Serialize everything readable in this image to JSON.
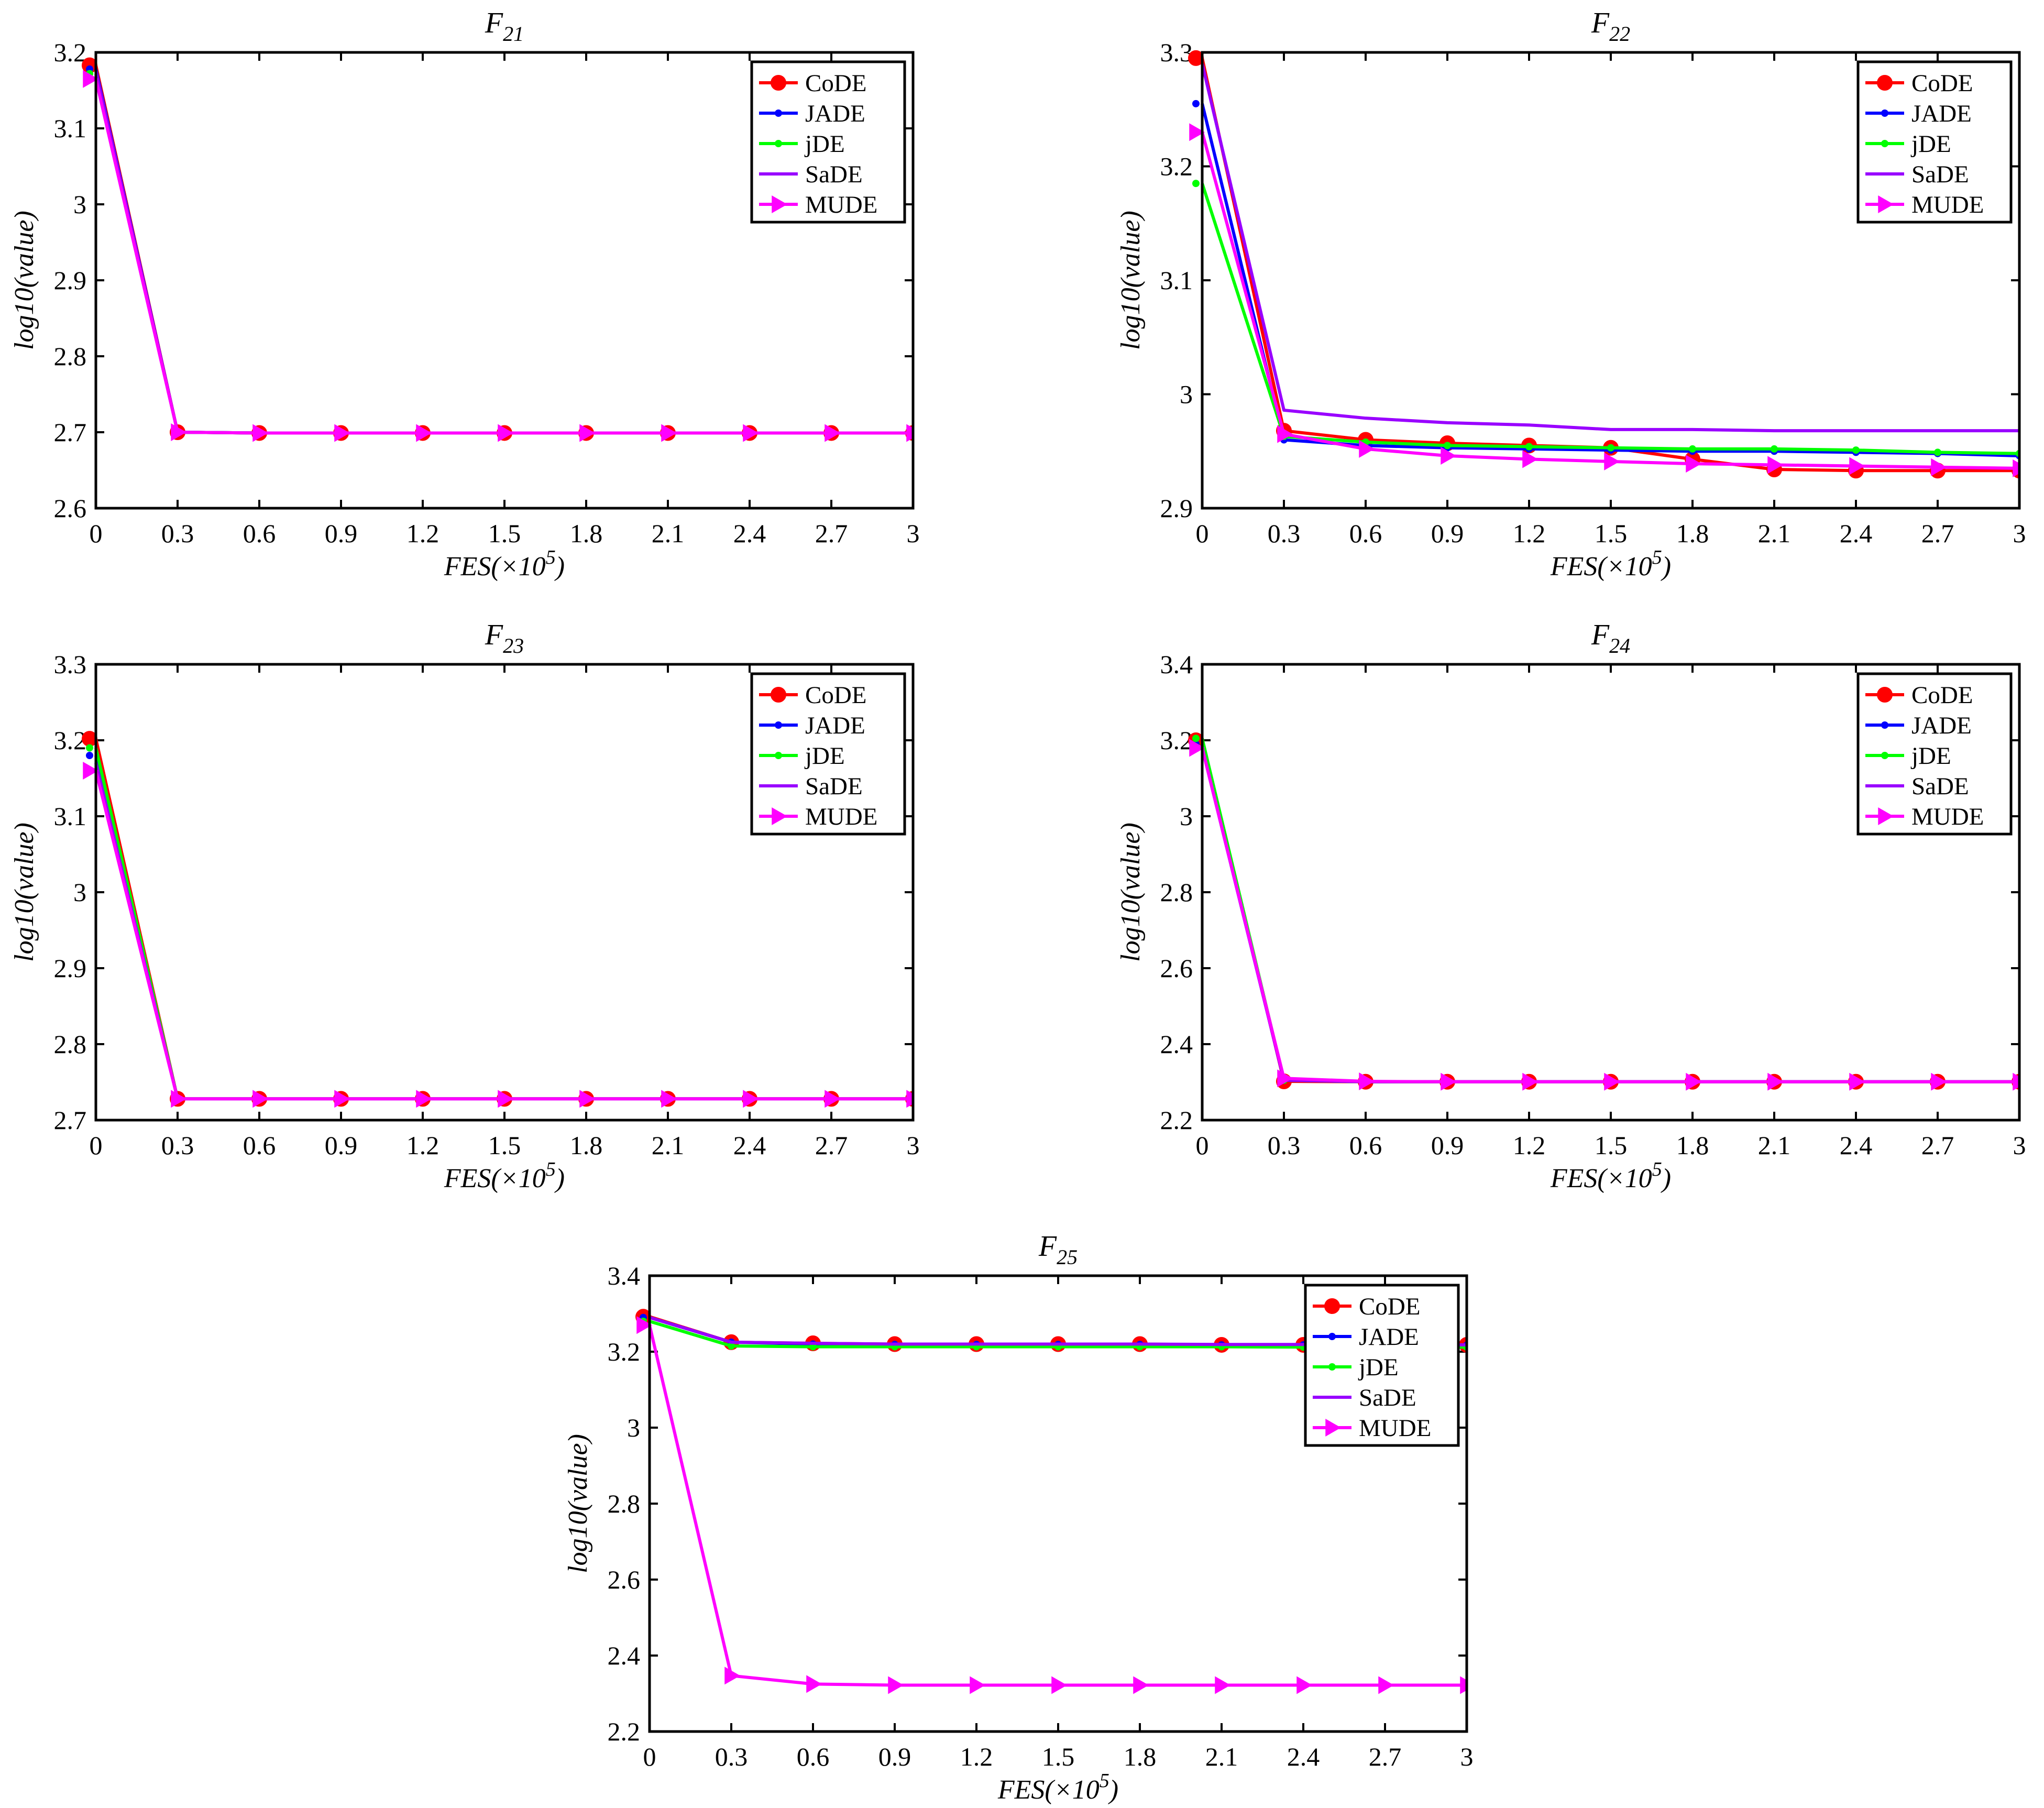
{
  "figure": {
    "x_label": "FES(×10",
    "x_label_exp": "5",
    "x_label_close": ")",
    "y_label": "log10(value)"
  },
  "legend": [
    {
      "name": "CoDE",
      "color": "#ff0000",
      "marker": "circle"
    },
    {
      "name": "JADE",
      "color": "#0000ff",
      "marker": "dot"
    },
    {
      "name": "jDE",
      "color": "#00ff00",
      "marker": "dot"
    },
    {
      "name": "SaDE",
      "color": "#9900ff",
      "marker": "none"
    },
    {
      "name": "MUDE",
      "color": "#ff00ff",
      "marker": "triangle"
    }
  ],
  "chart_data": [
    {
      "type": "line",
      "title": "F",
      "title_sub": "21",
      "xlabel": "FES(×10^5)",
      "ylabel": "log10(value)",
      "x": [
        0,
        0.3,
        0.6,
        0.9,
        1.2,
        1.5,
        1.8,
        2.1,
        2.4,
        2.7,
        3
      ],
      "x_ticks": [
        "0",
        "0.3",
        "0.6",
        "0.9",
        "1.2",
        "1.5",
        "1.8",
        "2.1",
        "2.4",
        "2.7",
        "3"
      ],
      "ylim": [
        2.6,
        3.2
      ],
      "y_ticks": [
        "2.6",
        "2.7",
        "2.8",
        "2.9",
        "3",
        "3.1",
        "3.2"
      ],
      "series": [
        {
          "name": "CoDE",
          "values": [
            3.183,
            2.7,
            2.699,
            2.699,
            2.699,
            2.699,
            2.699,
            2.699,
            2.699,
            2.699,
            2.699
          ]
        },
        {
          "name": "JADE",
          "values": [
            3.178,
            2.7,
            2.699,
            2.699,
            2.699,
            2.699,
            2.699,
            2.699,
            2.699,
            2.699,
            2.699
          ]
        },
        {
          "name": "jDE",
          "values": [
            3.172,
            2.7,
            2.699,
            2.699,
            2.699,
            2.699,
            2.699,
            2.699,
            2.699,
            2.699,
            2.699
          ]
        },
        {
          "name": "SaDE",
          "values": [
            3.175,
            2.7,
            2.699,
            2.699,
            2.699,
            2.699,
            2.699,
            2.699,
            2.699,
            2.699,
            2.699
          ]
        },
        {
          "name": "MUDE",
          "values": [
            3.165,
            2.7,
            2.699,
            2.699,
            2.699,
            2.699,
            2.699,
            2.699,
            2.699,
            2.699,
            2.699
          ]
        }
      ]
    },
    {
      "type": "line",
      "title": "F",
      "title_sub": "22",
      "xlabel": "FES(×10^5)",
      "ylabel": "log10(value)",
      "x": [
        0,
        0.3,
        0.6,
        0.9,
        1.2,
        1.5,
        1.8,
        2.1,
        2.4,
        2.7,
        3
      ],
      "x_ticks": [
        "0",
        "0.3",
        "0.6",
        "0.9",
        "1.2",
        "1.5",
        "1.8",
        "2.1",
        "2.4",
        "2.7",
        "3"
      ],
      "ylim": [
        2.9,
        3.3
      ],
      "y_ticks": [
        "2.9",
        "3",
        "3.1",
        "3.2",
        "3.3"
      ],
      "series": [
        {
          "name": "CoDE",
          "values": [
            3.295,
            2.968,
            2.96,
            2.957,
            2.955,
            2.953,
            2.943,
            2.934,
            2.933,
            2.933,
            2.933
          ]
        },
        {
          "name": "JADE",
          "values": [
            3.255,
            2.96,
            2.955,
            2.953,
            2.952,
            2.951,
            2.95,
            2.95,
            2.949,
            2.948,
            2.946
          ]
        },
        {
          "name": "jDE",
          "values": [
            3.185,
            2.963,
            2.958,
            2.955,
            2.954,
            2.953,
            2.952,
            2.952,
            2.951,
            2.949,
            2.948
          ]
        },
        {
          "name": "SaDE",
          "values": [
            3.29,
            2.986,
            2.979,
            2.975,
            2.973,
            2.969,
            2.969,
            2.968,
            2.968,
            2.968,
            2.968
          ]
        },
        {
          "name": "MUDE",
          "values": [
            3.23,
            2.965,
            2.952,
            2.946,
            2.943,
            2.941,
            2.939,
            2.938,
            2.937,
            2.936,
            2.935
          ]
        }
      ]
    },
    {
      "type": "line",
      "title": "F",
      "title_sub": "23",
      "xlabel": "FES(×10^5)",
      "ylabel": "log10(value)",
      "x": [
        0,
        0.3,
        0.6,
        0.9,
        1.2,
        1.5,
        1.8,
        2.1,
        2.4,
        2.7,
        3
      ],
      "x_ticks": [
        "0",
        "0.3",
        "0.6",
        "0.9",
        "1.2",
        "1.5",
        "1.8",
        "2.1",
        "2.4",
        "2.7",
        "3"
      ],
      "ylim": [
        2.7,
        3.3
      ],
      "y_ticks": [
        "2.7",
        "2.8",
        "2.9",
        "3",
        "3.1",
        "3.2",
        "3.3"
      ],
      "series": [
        {
          "name": "CoDE",
          "values": [
            3.202,
            2.728,
            2.728,
            2.728,
            2.728,
            2.728,
            2.728,
            2.728,
            2.728,
            2.728,
            2.728
          ]
        },
        {
          "name": "JADE",
          "values": [
            3.18,
            2.728,
            2.728,
            2.728,
            2.728,
            2.728,
            2.728,
            2.728,
            2.728,
            2.728,
            2.728
          ]
        },
        {
          "name": "jDE",
          "values": [
            3.19,
            2.728,
            2.728,
            2.728,
            2.728,
            2.728,
            2.728,
            2.728,
            2.728,
            2.728,
            2.728
          ]
        },
        {
          "name": "SaDE",
          "values": [
            3.17,
            2.728,
            2.728,
            2.728,
            2.728,
            2.728,
            2.728,
            2.728,
            2.728,
            2.728,
            2.728
          ]
        },
        {
          "name": "MUDE",
          "values": [
            3.16,
            2.728,
            2.728,
            2.728,
            2.728,
            2.728,
            2.728,
            2.728,
            2.728,
            2.728,
            2.728
          ]
        }
      ]
    },
    {
      "type": "line",
      "title": "F",
      "title_sub": "24",
      "xlabel": "FES(×10^5)",
      "ylabel": "log10(value)",
      "x": [
        0,
        0.3,
        0.6,
        0.9,
        1.2,
        1.5,
        1.8,
        2.1,
        2.4,
        2.7,
        3
      ],
      "x_ticks": [
        "0",
        "0.3",
        "0.6",
        "0.9",
        "1.2",
        "1.5",
        "1.8",
        "2.1",
        "2.4",
        "2.7",
        "3"
      ],
      "ylim": [
        2.2,
        3.4
      ],
      "y_ticks": [
        "2.2",
        "2.4",
        "2.6",
        "2.8",
        "3",
        "3.2",
        "3.4"
      ],
      "series": [
        {
          "name": "CoDE",
          "values": [
            3.2,
            2.302,
            2.301,
            2.301,
            2.301,
            2.301,
            2.301,
            2.301,
            2.301,
            2.301,
            2.301
          ]
        },
        {
          "name": "JADE",
          "values": [
            3.19,
            2.305,
            2.301,
            2.301,
            2.301,
            2.301,
            2.301,
            2.301,
            2.301,
            2.301,
            2.301
          ]
        },
        {
          "name": "jDE",
          "values": [
            3.205,
            2.305,
            2.301,
            2.301,
            2.301,
            2.301,
            2.301,
            2.301,
            2.301,
            2.301,
            2.301
          ]
        },
        {
          "name": "SaDE",
          "values": [
            3.18,
            2.305,
            2.301,
            2.301,
            2.301,
            2.301,
            2.301,
            2.301,
            2.301,
            2.301,
            2.301
          ]
        },
        {
          "name": "MUDE",
          "values": [
            3.18,
            2.31,
            2.302,
            2.301,
            2.301,
            2.301,
            2.301,
            2.301,
            2.301,
            2.301,
            2.301
          ]
        }
      ]
    },
    {
      "type": "line",
      "title": "F",
      "title_sub": "25",
      "xlabel": "FES(×10^5)",
      "ylabel": "log10(value)",
      "x": [
        0,
        0.3,
        0.6,
        0.9,
        1.2,
        1.5,
        1.8,
        2.1,
        2.4,
        2.7,
        3
      ],
      "x_ticks": [
        "0",
        "0.3",
        "0.6",
        "0.9",
        "1.2",
        "1.5",
        "1.8",
        "2.1",
        "2.4",
        "2.7",
        "3"
      ],
      "ylim": [
        2.2,
        3.4
      ],
      "y_ticks": [
        "2.2",
        "2.4",
        "2.6",
        "2.8",
        "3",
        "3.2",
        "3.4"
      ],
      "series": [
        {
          "name": "CoDE",
          "values": [
            3.292,
            3.225,
            3.222,
            3.22,
            3.22,
            3.22,
            3.22,
            3.218,
            3.218,
            3.218,
            3.218
          ]
        },
        {
          "name": "JADE",
          "values": [
            3.29,
            3.225,
            3.22,
            3.219,
            3.219,
            3.219,
            3.219,
            3.218,
            3.218,
            3.217,
            3.217
          ]
        },
        {
          "name": "jDE",
          "values": [
            3.28,
            3.215,
            3.213,
            3.213,
            3.213,
            3.213,
            3.213,
            3.213,
            3.212,
            3.212,
            3.212
          ]
        },
        {
          "name": "SaDE",
          "values": [
            3.29,
            3.225,
            3.222,
            3.22,
            3.22,
            3.22,
            3.22,
            3.219,
            3.219,
            3.218,
            3.218
          ]
        },
        {
          "name": "MUDE",
          "values": [
            3.27,
            2.347,
            2.325,
            2.322,
            2.322,
            2.322,
            2.322,
            2.322,
            2.322,
            2.322,
            2.322
          ]
        }
      ]
    }
  ]
}
